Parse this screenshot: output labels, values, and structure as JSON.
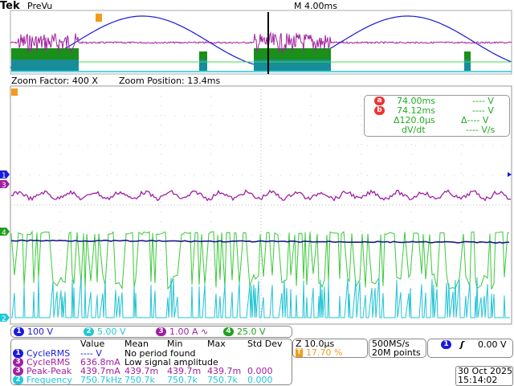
{
  "header": {
    "brand": "Tek",
    "mode": "PreVu",
    "timebase": "M 4.00ms"
  },
  "zoom": {
    "factor_label": "Zoom Factor: 400 X",
    "position_label": "Zoom Position: 13.4ms"
  },
  "cursors": {
    "a_label": "a",
    "a_time": "74.00ms",
    "a_volt": "---- V",
    "b_label": "b",
    "b_time": "74.12ms",
    "b_volt": "---- V",
    "delta_time": "Δ120.0µs",
    "delta_volt": "Δ---- V",
    "dvdt_label": "dV/dt",
    "dvdt_value": "---- V/s"
  },
  "channels": [
    {
      "num": "1",
      "scale": "100 V",
      "color": "#1a1adc"
    },
    {
      "num": "2",
      "scale": "5.00 V",
      "color": "#1ec8d8"
    },
    {
      "num": "3",
      "scale": "1.00 A",
      "extra": "∿",
      "color": "#a020a0"
    },
    {
      "num": "4",
      "scale": "25.0 V",
      "color": "#1ea01e"
    }
  ],
  "measurements": {
    "headers": [
      "Value",
      "Mean",
      "Min",
      "Max",
      "Std Dev"
    ],
    "rows": [
      {
        "ch": "1",
        "name": "CycleRMS",
        "value": "---- V",
        "note": "No period found",
        "color": "#1a1adc"
      },
      {
        "ch": "3",
        "name": "CycleRMS",
        "value": "636.8mA",
        "note": "Low signal amplitude",
        "color": "#a020a0"
      },
      {
        "ch": "3",
        "name": "Peak-Peak",
        "value": "439.7mA",
        "mean": "439.7m",
        "min": "439.7m",
        "max": "439.7m",
        "std": "0.000",
        "color": "#a020a0"
      },
      {
        "ch": "2",
        "name": "Frequency",
        "value": "750.7kHz",
        "mean": "750.7k",
        "min": "750.7k",
        "max": "750.7k",
        "std": "0.000",
        "color": "#1ec8d8"
      }
    ]
  },
  "horizontal": {
    "scale": "Z 10.0µs",
    "trigger_pos": "17.70 %",
    "trigger_icon": "T"
  },
  "acquisition": {
    "rate": "500MS/s",
    "points": "20M points"
  },
  "trigger": {
    "source": "1",
    "slope": "rising",
    "level": "0.00 V"
  },
  "datetime": {
    "date": "30 Oct  2025",
    "time": "15:14:02"
  },
  "markers": {
    "ch1": "1",
    "ch2": "2",
    "ch3": "3",
    "ch4": "4",
    "trig": "T"
  }
}
